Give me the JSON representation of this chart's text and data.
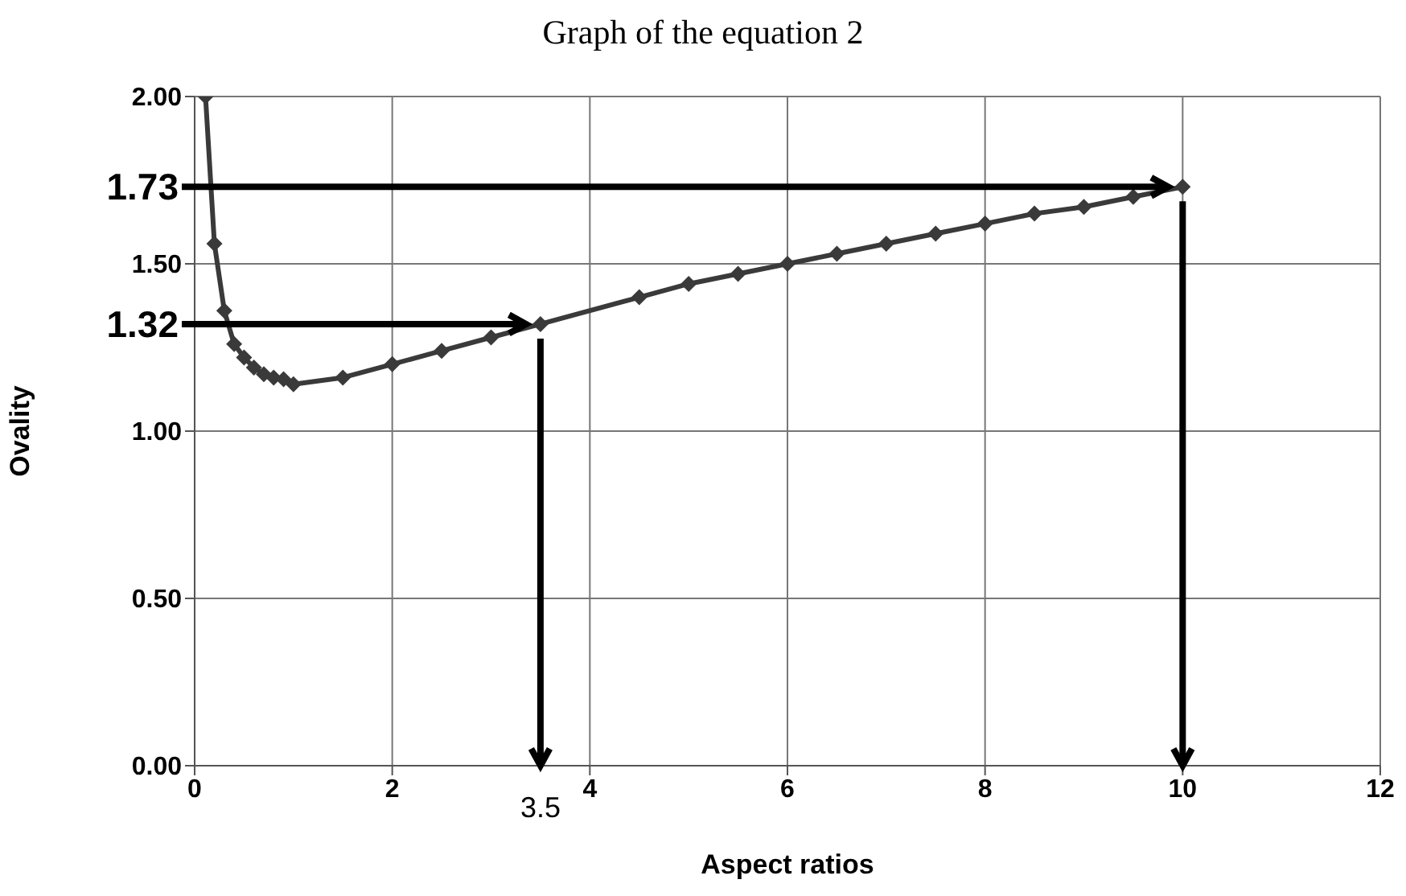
{
  "chart_data": {
    "type": "line",
    "title": "Graph of the equation 2",
    "xlabel": "Aspect ratios",
    "ylabel": "Ovality",
    "xlim": [
      0,
      12
    ],
    "xticks": [
      0,
      2,
      4,
      6,
      8,
      10,
      12
    ],
    "ylim": [
      0,
      2
    ],
    "yticks": [
      {
        "value": 0,
        "label": "0.00"
      },
      {
        "value": 0.5,
        "label": "0.50"
      },
      {
        "value": 1,
        "label": "1.00"
      },
      {
        "value": 1.5,
        "label": "1.50"
      },
      {
        "value": 2,
        "label": "2.00"
      }
    ],
    "grid": true,
    "legend": false,
    "marker": "diamond",
    "line_style": "solid",
    "series": [
      {
        "color": "#3a3a3a",
        "x": [
          0.11,
          0.2,
          0.3,
          0.4,
          0.5,
          0.6,
          0.7,
          0.8,
          0.9,
          1,
          1.5,
          2,
          2.5,
          3,
          3.5,
          4.5,
          5,
          5.5,
          6,
          6.5,
          7,
          7.5,
          8,
          8.5,
          9,
          9.5,
          10
        ],
        "values": [
          2.0,
          1.56,
          1.36,
          1.26,
          1.22,
          1.19,
          1.17,
          1.16,
          1.155,
          1.14,
          1.16,
          1.2,
          1.24,
          1.28,
          1.32,
          1.4,
          1.44,
          1.47,
          1.5,
          1.53,
          1.56,
          1.59,
          1.62,
          1.65,
          1.67,
          1.7,
          1.73
        ]
      }
    ],
    "ref_lines": [
      {
        "axis": "y",
        "value": 1.73,
        "label": "1.73",
        "color": "#000000"
      },
      {
        "axis": "x",
        "value": 10,
        "label": null,
        "color": "#000000"
      },
      {
        "axis": "y",
        "value": 1.32,
        "label": "1.32",
        "color": "#000000"
      },
      {
        "axis": "x",
        "value": 3.5,
        "label": "3.5",
        "color": "#000000"
      }
    ]
  }
}
